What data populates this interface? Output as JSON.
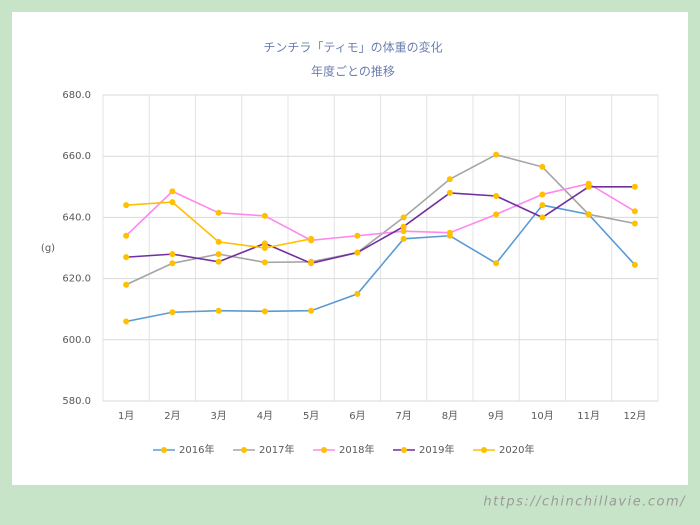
{
  "chart_data": {
    "type": "line",
    "title": "チンチラ「ティモ」の体重の変化",
    "subtitle": "年度ごとの推移",
    "y_label": "(g)",
    "watermark": "https://chinchillavie.com/",
    "categories": [
      "1月",
      "2月",
      "3月",
      "4月",
      "5月",
      "6月",
      "7月",
      "8月",
      "9月",
      "10月",
      "11月",
      "12月"
    ],
    "series": [
      {
        "name": "2016年",
        "color": "#5b9bd5",
        "values": [
          606,
          609,
          609.5,
          609.3,
          609.5,
          615,
          633,
          634,
          625,
          644,
          641,
          624.5
        ]
      },
      {
        "name": "2017年",
        "color": "#a5a5a5",
        "values": [
          618,
          625,
          628,
          625.3,
          625.5,
          628.5,
          640,
          652.5,
          660.5,
          656.5,
          641,
          638
        ]
      },
      {
        "name": "2018年",
        "color": "#ff88ee",
        "values": [
          634,
          648.5,
          641.5,
          640.5,
          632.5,
          634,
          635.5,
          635,
          641,
          647.5,
          651,
          642
        ]
      },
      {
        "name": "2019年",
        "color": "#7030a0",
        "values": [
          627,
          628,
          625.5,
          631.5,
          625,
          628.5,
          637,
          648,
          647,
          640,
          650,
          650
        ]
      },
      {
        "name": "2020年",
        "color": "#ffc000",
        "values": [
          644,
          645,
          632,
          630,
          633,
          null,
          null,
          null,
          null,
          null,
          null,
          null
        ]
      }
    ],
    "marker_color": "#ffc000",
    "ylim": [
      580,
      680
    ],
    "yticks": [
      {
        "value": 580,
        "label": "580.0"
      },
      {
        "value": 600,
        "label": "600.0"
      },
      {
        "value": 620,
        "label": "620.0"
      },
      {
        "value": 640,
        "label": "640.0"
      },
      {
        "value": 660,
        "label": "660.0"
      },
      {
        "value": 680,
        "label": "680.0"
      }
    ],
    "grid": true
  }
}
